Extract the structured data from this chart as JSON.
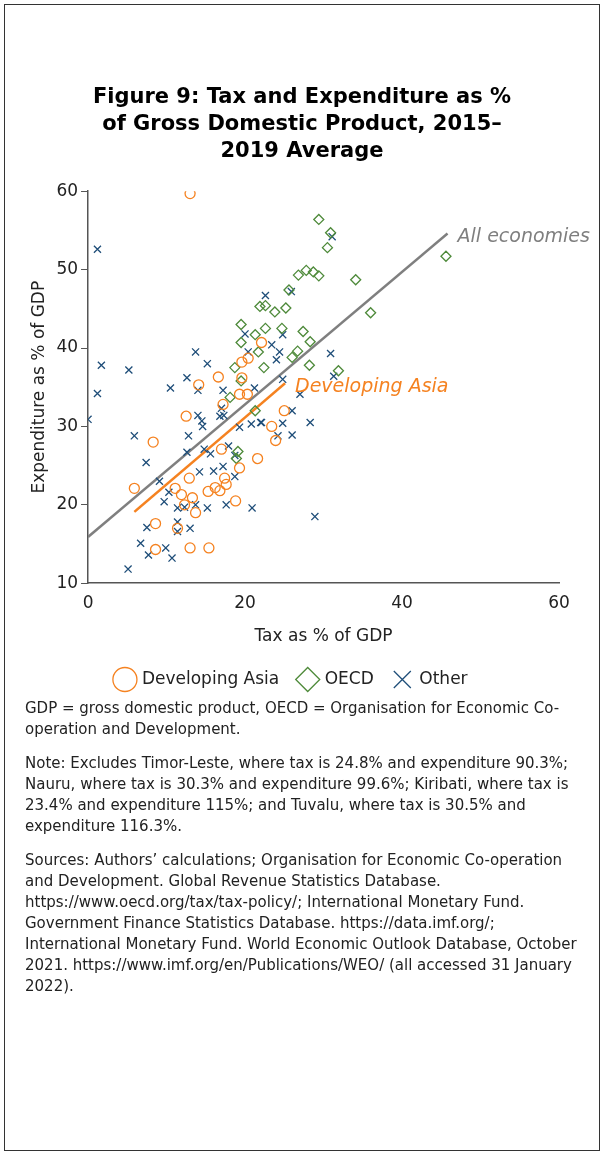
{
  "chart_data": {
    "type": "scatter",
    "title": "Figure 9: Tax and Expenditure as % of Gross Domestic Product, 2015–2019 Average",
    "xlabel": "Tax as % of GDP",
    "ylabel": "Expenditure as % of GDP",
    "xlim": [
      0,
      60
    ],
    "ylim": [
      10,
      60
    ],
    "xticks": [
      0,
      20,
      40,
      60
    ],
    "yticks": [
      10,
      20,
      30,
      40,
      50,
      60
    ],
    "legend": "bottom",
    "series": [
      {
        "name": "Developing Asia",
        "marker": "circle",
        "color": "#f58220",
        "x": [
          13.0,
          16.6,
          14.1,
          19.6,
          19.3,
          20.3,
          17.2,
          12.5,
          8.3,
          17.0,
          21.6,
          19.3,
          12.9,
          17.4,
          5.9,
          11.1,
          11.9,
          13.3,
          16.2,
          15.3,
          16.8,
          17.6,
          13.7,
          18.8,
          12.3,
          8.6,
          11.4,
          8.6,
          13.0,
          15.4,
          25.0,
          23.4,
          23.9,
          22.1,
          20.4,
          19.6
        ],
        "values": [
          59.7,
          36.3,
          35.3,
          36.2,
          34.1,
          34.1,
          32.8,
          31.3,
          28.0,
          27.1,
          25.9,
          24.7,
          23.4,
          23.4,
          22.1,
          22.1,
          21.3,
          20.9,
          22.2,
          21.7,
          21.8,
          22.6,
          19.0,
          20.5,
          20.0,
          17.6,
          17.0,
          14.3,
          14.5,
          14.5,
          32.0,
          30.0,
          28.2,
          40.7,
          38.7,
          38.2
        ]
      },
      {
        "name": "OECD",
        "marker": "diamond",
        "color": "#4e8a3a",
        "x": [
          29.4,
          30.9,
          30.5,
          45.6,
          26.8,
          27.8,
          28.7,
          29.4,
          34.1,
          25.6,
          22.6,
          23.8,
          25.2,
          36.0,
          22.6,
          24.7,
          27.4,
          28.3,
          26.7,
          26.0,
          28.2,
          22.4,
          31.9,
          21.9,
          19.5,
          21.3,
          19.5,
          21.7,
          18.7,
          19.5,
          18.1,
          21.3,
          19.1,
          18.9
        ],
        "values": [
          56.4,
          54.7,
          52.8,
          51.7,
          49.3,
          49.9,
          49.7,
          49.2,
          48.7,
          47.4,
          45.4,
          44.6,
          45.1,
          44.5,
          42.5,
          42.5,
          42.1,
          40.8,
          39.6,
          38.8,
          37.8,
          37.5,
          37.1,
          45.3,
          43.0,
          41.7,
          40.7,
          39.5,
          37.5,
          35.8,
          33.7,
          32.0,
          26.8,
          25.9
        ]
      },
      {
        "name": "Other",
        "marker": "cross",
        "color": "#1f4e79",
        "x": [
          1.2,
          22.6,
          20.0,
          20.4,
          13.7,
          15.2,
          1.7,
          5.2,
          31.1,
          25.9,
          24.8,
          23.4,
          24.4,
          24.0,
          30.9,
          31.3,
          12.6,
          10.5,
          1.2,
          14.0,
          17.2,
          21.2,
          0,
          14.0,
          14.5,
          14.6,
          17.0,
          17.3,
          16.8,
          19.3,
          20.8,
          22.0,
          5.9,
          12.8,
          12.6,
          14.8,
          15.6,
          17.9,
          18.7,
          7.4,
          14.2,
          16.0,
          17.2,
          18.7,
          9.1,
          10.3,
          9.7,
          11.4,
          12.3,
          13.7,
          15.2,
          17.6,
          20.9,
          7.5,
          11.4,
          11.4,
          13.0,
          6.7,
          7.7,
          9.9,
          10.7,
          5.1,
          24.8,
          27.0,
          26.0,
          24.8,
          28.3,
          22.1,
          24.2,
          26.0,
          28.9
        ],
        "values": [
          52.6,
          46.7,
          41.8,
          39.5,
          39.5,
          38.0,
          37.8,
          37.2,
          54.2,
          47.2,
          41.7,
          40.4,
          39.5,
          38.5,
          39.3,
          36.4,
          36.2,
          34.9,
          34.2,
          34.6,
          34.6,
          34.9,
          30.9,
          31.4,
          30.7,
          30.0,
          32.3,
          31.4,
          31.3,
          29.9,
          30.3,
          30.5,
          28.8,
          28.8,
          26.7,
          27.1,
          26.5,
          27.5,
          26.3,
          25.4,
          24.2,
          24.3,
          24.9,
          23.6,
          23.0,
          21.6,
          20.4,
          19.6,
          19.7,
          20.0,
          19.6,
          20.0,
          19.6,
          17.1,
          17.8,
          16.6,
          17.0,
          15.1,
          13.6,
          14.5,
          13.2,
          11.8,
          36.0,
          34.1,
          32.0,
          30.4,
          30.5,
          30.5,
          28.8,
          28.9,
          18.5
        ]
      },
      {
        "name": "All economies",
        "type": "line",
        "marker": "none",
        "color": "#7f7f7f",
        "x": [
          0,
          45.8
        ],
        "values": [
          15.9,
          54.6
        ]
      },
      {
        "name": "Developing Asia",
        "type": "line",
        "marker": "none",
        "color": "#f58220",
        "x": [
          5.9,
          25.1
        ],
        "values": [
          19.1,
          35.5
        ]
      }
    ],
    "annotations": [
      "GDP = gross domestic product, OECD = Organisation for Economic Co-operation and Development.",
      "Note: Excludes Timor-Leste, where tax is 24.8% and expenditure 90.3%; Nauru, where tax is 30.3% and expenditure 99.6%; Kiribati, where tax is 23.4% and expenditure 115%; and Tuvalu, where tax is 30.5% and expenditure 116.3%.",
      "Sources: Authors’ calculations; Organisation for Economic Co-operation and Development. Global Revenue Statistics Database. https://www.oecd.org/tax/tax-policy/; International Monetary Fund. Government Finance Statistics Database. https://data.imf.org/; International Monetary Fund. World Economic Outlook Database, October 2021. https://www.imf.org/en/Publications/WEO/ (all accessed 31 January 2022)."
    ]
  }
}
